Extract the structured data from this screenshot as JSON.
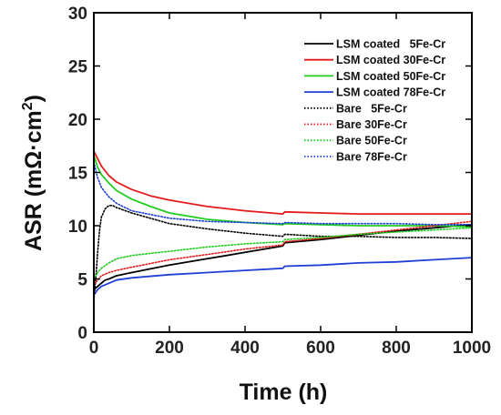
{
  "chart_data": {
    "type": "line",
    "xlabel": "Time (h)",
    "ylabel_main": "ASR (mΩ·cm",
    "ylabel_sup": "2",
    "ylabel_close": ")",
    "xlim": [
      0,
      1000
    ],
    "ylim": [
      0,
      30
    ],
    "xticks": [
      0,
      200,
      400,
      600,
      800,
      1000
    ],
    "yticks": [
      0,
      5,
      10,
      15,
      20,
      25,
      30
    ],
    "grid": false,
    "legend_position": "top-right",
    "series": [
      {
        "name": "LSM coated   5Fe-Cr",
        "color": "#000000",
        "style": "solid",
        "x": [
          0,
          10,
          20,
          30,
          40,
          60,
          100,
          200,
          300,
          400,
          500,
          505,
          600,
          700,
          800,
          900,
          1000
        ],
        "y": [
          4.0,
          4.3,
          4.6,
          4.9,
          5.0,
          5.3,
          5.6,
          6.3,
          6.9,
          7.5,
          8.1,
          8.4,
          8.7,
          9.1,
          9.5,
          9.8,
          10.1
        ]
      },
      {
        "name": "LSM coated 30Fe-Cr",
        "color": "#e41a1c",
        "style": "solid",
        "x": [
          0,
          10,
          20,
          40,
          60,
          100,
          150,
          200,
          300,
          400,
          500,
          505,
          600,
          700,
          800,
          900,
          1000
        ],
        "y": [
          17.0,
          16.3,
          15.6,
          14.7,
          14.1,
          13.4,
          12.8,
          12.4,
          11.8,
          11.4,
          11.1,
          11.3,
          11.2,
          11.1,
          11.1,
          11.1,
          11.1
        ]
      },
      {
        "name": "LSM coated 50Fe-Cr",
        "color": "#22cc22",
        "style": "solid",
        "x": [
          0,
          10,
          20,
          40,
          60,
          100,
          150,
          200,
          300,
          400,
          500,
          505,
          600,
          700,
          800,
          900,
          1000
        ],
        "y": [
          16.6,
          15.5,
          14.8,
          14.0,
          13.3,
          12.5,
          11.8,
          11.2,
          10.6,
          10.3,
          10.1,
          10.2,
          10.1,
          10.0,
          10.0,
          10.0,
          9.9
        ]
      },
      {
        "name": "LSM coated 78Fe-Cr",
        "color": "#1f3fd6",
        "style": "solid",
        "x": [
          0,
          10,
          20,
          40,
          60,
          100,
          200,
          300,
          400,
          500,
          505,
          600,
          700,
          800,
          900,
          1000
        ],
        "y": [
          3.5,
          4.0,
          4.3,
          4.6,
          4.9,
          5.1,
          5.4,
          5.6,
          5.8,
          6.0,
          6.2,
          6.3,
          6.5,
          6.6,
          6.8,
          7.0
        ]
      },
      {
        "name": "Bare   5Fe-Cr",
        "color": "#000000",
        "style": "dotted",
        "x": [
          0,
          5,
          10,
          15,
          20,
          30,
          40,
          50,
          60,
          100,
          200,
          300,
          400,
          500,
          505,
          600,
          700,
          800,
          900,
          1000
        ],
        "y": [
          3.0,
          5.0,
          7.5,
          9.5,
          10.8,
          11.6,
          11.9,
          11.9,
          11.7,
          11.2,
          10.2,
          9.7,
          9.3,
          9.0,
          9.2,
          9.0,
          9.0,
          8.9,
          8.9,
          8.8
        ]
      },
      {
        "name": "Bare 30Fe-Cr",
        "color": "#e41a1c",
        "style": "dotted",
        "x": [
          0,
          10,
          20,
          40,
          60,
          100,
          200,
          300,
          400,
          500,
          505,
          600,
          700,
          800,
          900,
          1000
        ],
        "y": [
          4.5,
          4.9,
          5.3,
          5.6,
          5.8,
          6.1,
          6.8,
          7.3,
          7.8,
          8.2,
          8.5,
          8.8,
          9.2,
          9.6,
          10.0,
          10.4
        ]
      },
      {
        "name": "Bare 50Fe-Cr",
        "color": "#22cc22",
        "style": "dotted",
        "x": [
          0,
          10,
          20,
          40,
          60,
          100,
          150,
          200,
          300,
          400,
          500,
          505,
          600,
          700,
          800,
          900,
          1000
        ],
        "y": [
          5.0,
          5.6,
          6.0,
          6.5,
          6.9,
          7.2,
          7.4,
          7.6,
          8.0,
          8.3,
          8.5,
          8.7,
          8.9,
          9.2,
          9.4,
          9.6,
          9.8
        ]
      },
      {
        "name": "Bare 78Fe-Cr",
        "color": "#1f3fd6",
        "style": "dotted",
        "x": [
          0,
          5,
          10,
          20,
          40,
          60,
          100,
          200,
          300,
          400,
          500,
          505,
          600,
          700,
          800,
          900,
          1000
        ],
        "y": [
          16.0,
          15.2,
          14.5,
          13.6,
          12.7,
          12.1,
          11.4,
          10.7,
          10.4,
          10.3,
          10.2,
          10.3,
          10.2,
          10.2,
          10.2,
          10.1,
          10.1
        ]
      }
    ]
  }
}
